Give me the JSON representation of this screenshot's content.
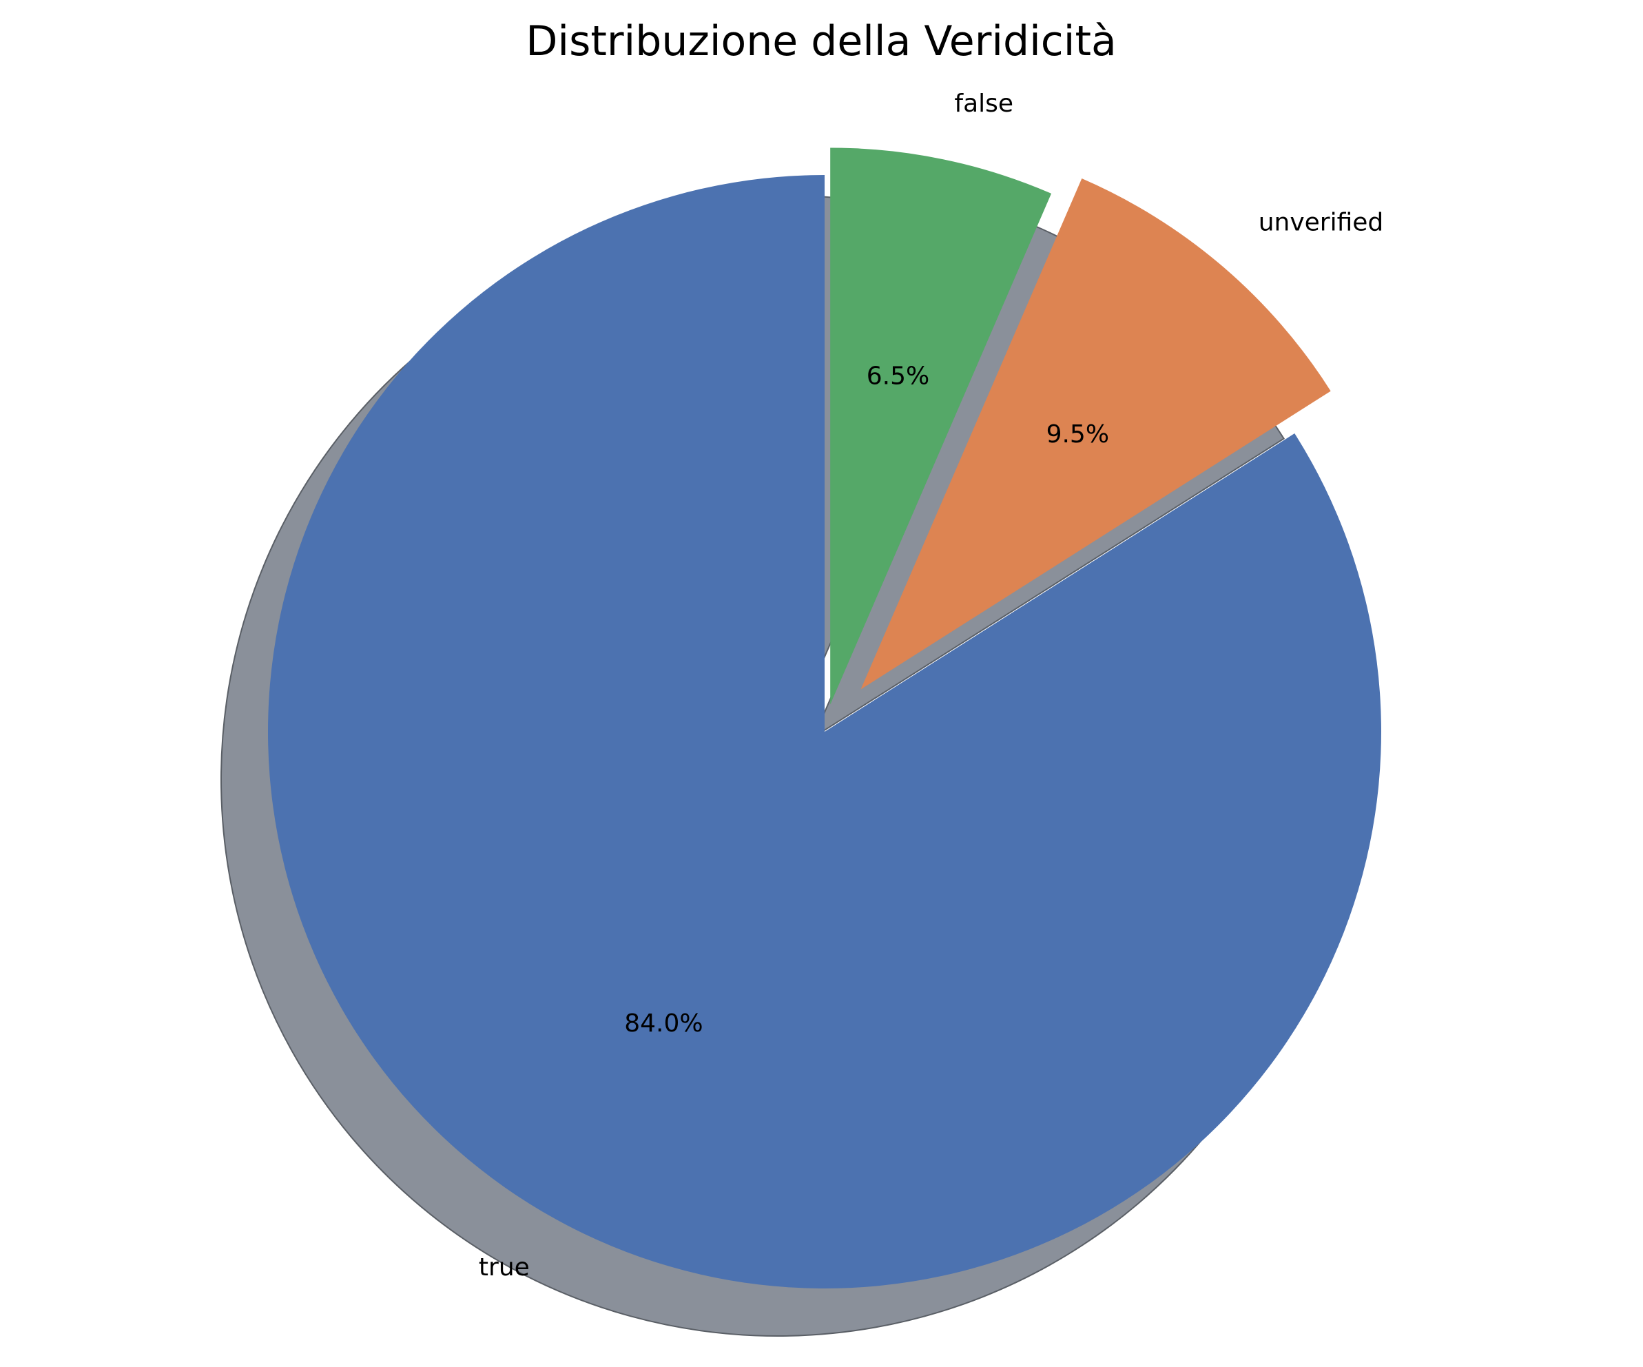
{
  "chart_data": {
    "type": "pie",
    "title": "Distribuzione della Veridicità",
    "start_angle_deg": 90,
    "direction": "clockwise",
    "shadow": true,
    "slices": [
      {
        "label": "false",
        "pct_label": "6.5%",
        "value": 6.5,
        "color": "#55a868",
        "explode": 0.05
      },
      {
        "label": "unverified",
        "pct_label": "9.5%",
        "value": 9.5,
        "color": "#dd8452",
        "explode": 0.1
      },
      {
        "label": "true",
        "pct_label": "84.0%",
        "value": 84.0,
        "color": "#4c72b0",
        "explode": 0.0
      }
    ],
    "shadow_color": "#8a909a"
  }
}
